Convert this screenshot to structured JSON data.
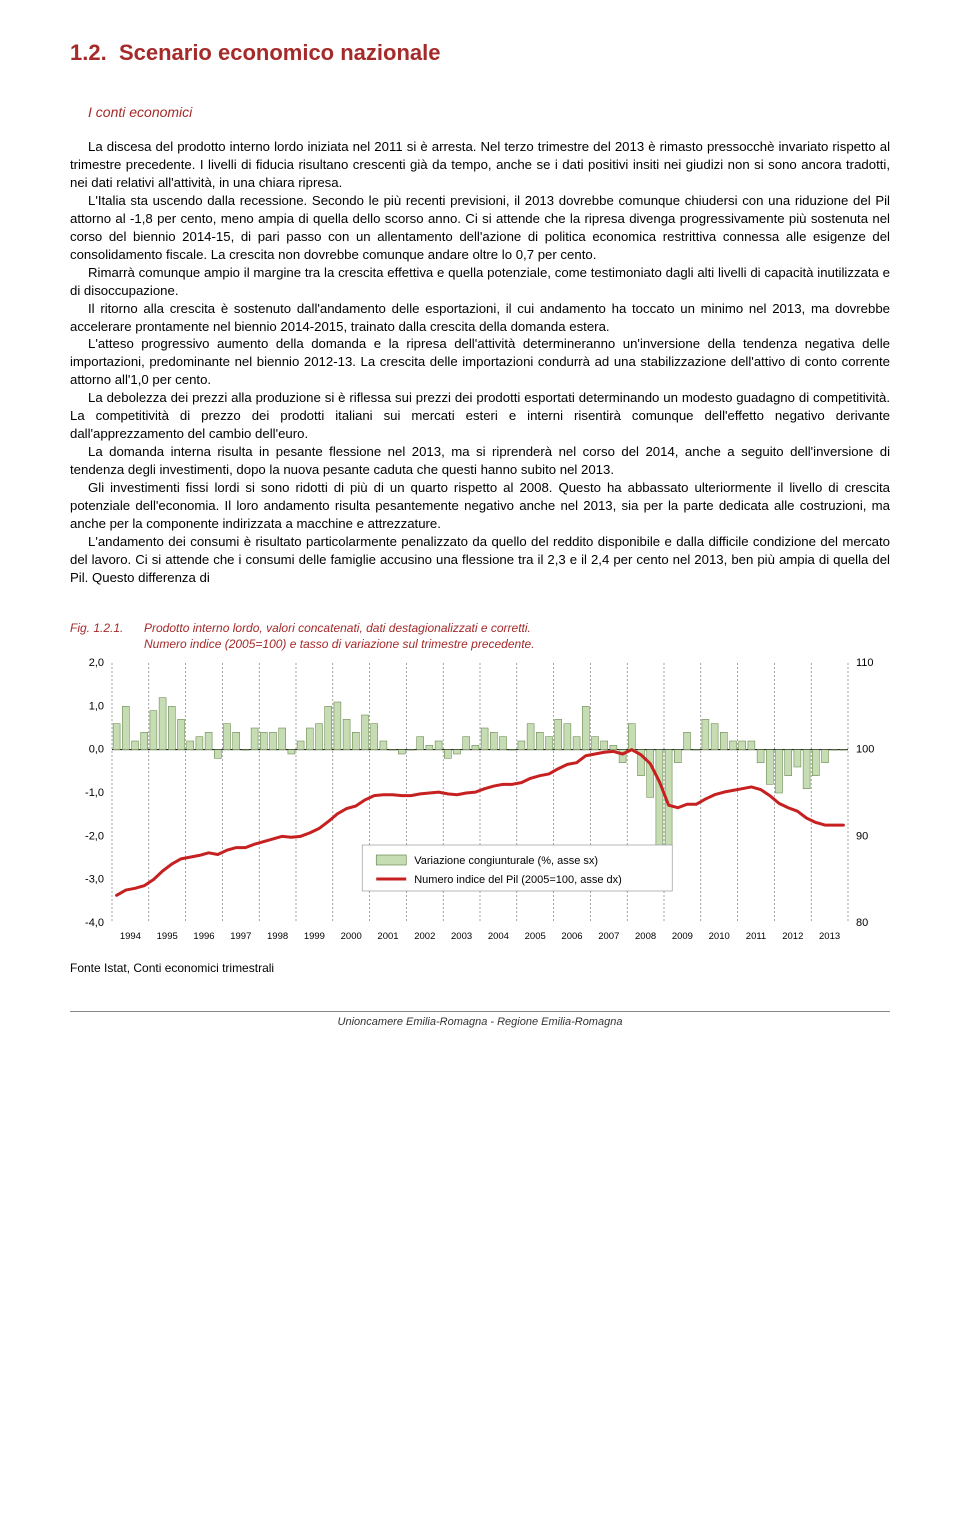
{
  "section": {
    "number": "1.2.",
    "title": "Scenario economico nazionale"
  },
  "subtitle": "I conti economici",
  "paragraphs": [
    "La discesa del prodotto interno lordo iniziata nel 2011 si è arresta. Nel terzo trimestre del 2013 è rimasto pressocchè invariato rispetto al trimestre precedente. I livelli di fiducia risultano crescenti già da tempo, anche se i dati positivi insiti nei giudizi non si sono ancora tradotti, nei dati relativi all'attività, in una chiara ripresa.",
    "L'Italia sta uscendo dalla recessione. Secondo le più recenti previsioni, il 2013 dovrebbe comunque chiudersi con una riduzione del Pil attorno al -1,8 per cento, meno ampia di quella dello scorso anno. Ci si attende che la ripresa divenga progressivamente più sostenuta nel corso del biennio 2014-15, di pari passo con un allentamento dell'azione di politica economica restrittiva connessa alle esigenze del consolidamento fiscale. La crescita non dovrebbe comunque andare oltre lo 0,7 per cento.",
    "Rimarrà comunque ampio il margine tra la crescita effettiva e quella potenziale, come testimoniato dagli alti livelli di capacità inutilizzata e di disoccupazione.",
    "Il ritorno alla crescita è sostenuto dall'andamento delle esportazioni, il cui andamento ha toccato un minimo nel 2013, ma dovrebbe accelerare prontamente nel biennio 2014-2015, trainato dalla crescita della domanda estera.",
    "L'atteso progressivo aumento della domanda e la ripresa dell'attività determineranno un'inversione della tendenza negativa delle importazioni, predominante nel biennio 2012-13. La crescita delle importazioni condurrà ad una stabilizzazione dell'attivo di conto corrente attorno all'1,0 per cento.",
    "La debolezza dei prezzi alla produzione si è riflessa sui prezzi dei prodotti esportati determinando un modesto guadagno di competitività. La competitività di prezzo dei prodotti italiani sui mercati esteri e interni risentirà comunque dell'effetto negativo derivante dall'apprezzamento del cambio dell'euro.",
    "La domanda interna risulta in pesante flessione nel 2013, ma si riprenderà nel corso del 2014, anche a seguito dell'inversione di tendenza degli investimenti, dopo la nuova pesante caduta che questi hanno subito nel 2013.",
    "Gli investimenti fissi lordi si sono ridotti di più di un quarto rispetto al 2008. Questo ha abbassato ulteriormente il livello di crescita potenziale dell'economia. Il loro andamento risulta pesantemente negativo anche nel 2013, sia per la parte dedicata alle costruzioni, ma anche per la componente indirizzata a macchine e attrezzature.",
    "L'andamento dei consumi è risultato particolarmente penalizzato da quello del reddito disponibile e dalla difficile condizione del mercato del lavoro. Ci si attende che i consumi delle famiglie accusino una flessione tra il 2,3 e il 2,4 per cento nel 2013, ben più ampia di quella del Pil. Questo differenza di"
  ],
  "figure": {
    "label": "Fig. 1.2.1.",
    "title": "Prodotto interno lordo, valori concatenati, dati destagionalizzati e corretti.",
    "subtitle": "Numero indice (2005=100) e tasso di variazione sul trimestre precedente.",
    "source": "Fonte Istat, Conti economici trimestrali"
  },
  "chart": {
    "type": "combo-bar-line",
    "plot_background": "#ffffff",
    "border_color": "#000000",
    "grid_color": "#666666",
    "bar_color": "#c6dcb2",
    "bar_border": "#5a7a3e",
    "line_color": "#c62020",
    "line_width": 3,
    "text_color": "#000000",
    "left_axis": {
      "min": -4.0,
      "max": 2.0,
      "step": 1.0,
      "ticks": [
        "2,0",
        "1,0",
        "0,0",
        "-1,0",
        "-2,0",
        "-3,0",
        "-4,0"
      ]
    },
    "right_axis": {
      "min": 80,
      "max": 110,
      "step": 10,
      "ticks": [
        "110",
        "100",
        "90",
        "80"
      ]
    },
    "x_labels": [
      "1994",
      "1995",
      "1996",
      "1997",
      "1998",
      "1999",
      "2000",
      "2001",
      "2002",
      "2003",
      "2004",
      "2005",
      "2006",
      "2007",
      "2008",
      "2009",
      "2010",
      "2011",
      "2012",
      "2013"
    ],
    "legend": {
      "bar_label": "Variazione congiunturale (%, asse sx)",
      "line_label": "Numero indice del Pil (2005=100, asse dx)"
    },
    "bars": [
      0.6,
      1.0,
      0.2,
      0.4,
      0.9,
      1.2,
      1.0,
      0.7,
      0.2,
      0.3,
      0.4,
      -0.2,
      0.6,
      0.4,
      0.0,
      0.5,
      0.4,
      0.4,
      0.5,
      -0.1,
      0.2,
      0.5,
      0.6,
      1.0,
      1.1,
      0.7,
      0.4,
      0.8,
      0.6,
      0.2,
      0.0,
      -0.1,
      0.0,
      0.3,
      0.1,
      0.2,
      -0.2,
      -0.1,
      0.3,
      0.1,
      0.5,
      0.4,
      0.3,
      0.0,
      0.2,
      0.6,
      0.4,
      0.3,
      0.7,
      0.6,
      0.3,
      1.0,
      0.3,
      0.2,
      0.1,
      -0.3,
      0.6,
      -0.6,
      -1.1,
      -2.3,
      -3.0,
      -0.3,
      0.4,
      0.0,
      0.7,
      0.6,
      0.4,
      0.2,
      0.2,
      0.2,
      -0.3,
      -0.8,
      -1.0,
      -0.6,
      -0.4,
      -0.9,
      -0.6,
      -0.3,
      0.0,
      0.0
    ],
    "line_index": [
      83.2,
      83.8,
      84.0,
      84.3,
      85.0,
      86.0,
      86.8,
      87.4,
      87.6,
      87.8,
      88.1,
      87.9,
      88.4,
      88.7,
      88.7,
      89.1,
      89.4,
      89.7,
      90.0,
      89.9,
      90.0,
      90.4,
      90.9,
      91.7,
      92.6,
      93.2,
      93.5,
      94.2,
      94.7,
      94.8,
      94.8,
      94.7,
      94.7,
      94.9,
      95.0,
      95.1,
      94.9,
      94.8,
      95.0,
      95.1,
      95.5,
      95.8,
      96.0,
      96.0,
      96.2,
      96.7,
      97.0,
      97.2,
      97.8,
      98.3,
      98.5,
      99.3,
      99.5,
      99.7,
      99.8,
      99.5,
      100.0,
      99.4,
      98.4,
      96.3,
      93.6,
      93.3,
      93.7,
      93.7,
      94.3,
      94.8,
      95.1,
      95.3,
      95.5,
      95.7,
      95.4,
      94.7,
      93.8,
      93.3,
      92.9,
      92.1,
      91.6,
      91.3,
      91.3,
      91.3
    ]
  },
  "footer": "Unioncamere Emilia-Romagna - Regione Emilia-Romagna"
}
